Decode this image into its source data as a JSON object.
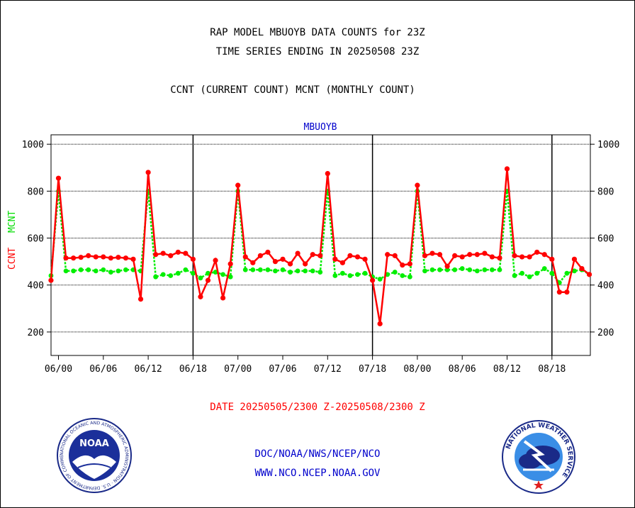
{
  "header": {
    "title_line1": "RAP MODEL MBUOYB DATA COUNTS for 23Z",
    "title_line2": "TIME SERIES ENDING IN 20250508 23Z",
    "subtitle": "CCNT (CURRENT COUNT) MCNT (MONTHLY COUNT)"
  },
  "footer": {
    "date_range": "DATE 20250505/2300 Z-20250508/2300 Z",
    "link1": "DOC/NOAA/NWS/NCEP/NCO",
    "link2": "WWW.NCO.NCEP.NOAA.GOV"
  },
  "logos": {
    "noaa": "NOAA",
    "noaa_ring": "NATIONAL OCEANIC AND ATMOSPHERIC ADMINISTRATION · U.S. DEPARTMENT OF COMMERCE ·",
    "nws_ring": "NATIONAL WEATHER SERVICE"
  },
  "colors": {
    "ccnt": "#ff0000",
    "mcnt": "#00ee00",
    "title_blue": "#0000cc"
  },
  "chart_data": {
    "type": "line",
    "title": "MBUOYB",
    "ylabel_parts": [
      "CCNT",
      "MCNT"
    ],
    "ylim": [
      100,
      1040
    ],
    "yticks": [
      200,
      400,
      600,
      800,
      1000
    ],
    "xlim": [
      -1,
      59
    ],
    "xticks": [
      {
        "x": 0,
        "label": "06/00"
      },
      {
        "x": 6,
        "label": "06/06"
      },
      {
        "x": 12,
        "label": "06/12"
      },
      {
        "x": 18,
        "label": "06/18"
      },
      {
        "x": 24,
        "label": "07/00"
      },
      {
        "x": 30,
        "label": "07/06"
      },
      {
        "x": 36,
        "label": "07/12"
      },
      {
        "x": 42,
        "label": "07/18"
      },
      {
        "x": 48,
        "label": "08/00"
      },
      {
        "x": 54,
        "label": "08/06"
      },
      {
        "x": 60,
        "label": "08/12"
      },
      {
        "x": 66,
        "label": "08/18"
      }
    ],
    "day_separators": [
      18,
      42,
      66
    ],
    "grid": true,
    "series": [
      {
        "name": "CCNT",
        "values": [
          420,
          855,
          515,
          515,
          518,
          525,
          520,
          520,
          515,
          518,
          515,
          510,
          340,
          880,
          530,
          535,
          525,
          540,
          535,
          510,
          350,
          420,
          505,
          345,
          490,
          825,
          520,
          495,
          525,
          540,
          500,
          510,
          490,
          535,
          490,
          530,
          525,
          875,
          510,
          495,
          525,
          520,
          510,
          420,
          235,
          530,
          525,
          485,
          490,
          825,
          525,
          535,
          530,
          480,
          525,
          520,
          530,
          530,
          535,
          520,
          515,
          895,
          525,
          520,
          520,
          540,
          530,
          510,
          370,
          370,
          510,
          470,
          445
        ]
      },
      {
        "name": "MCNT",
        "values": [
          440,
          800,
          460,
          460,
          465,
          465,
          460,
          465,
          455,
          460,
          465,
          465,
          460,
          800,
          435,
          445,
          440,
          450,
          465,
          450,
          430,
          450,
          455,
          445,
          435,
          800,
          465,
          465,
          465,
          465,
          460,
          465,
          455,
          460,
          460,
          460,
          455,
          800,
          440,
          450,
          440,
          445,
          450,
          435,
          425,
          445,
          455,
          440,
          435,
          800,
          460,
          465,
          465,
          465,
          465,
          470,
          465,
          460,
          465,
          465,
          465,
          800,
          440,
          450,
          435,
          450,
          470,
          450,
          410,
          450,
          460,
          465,
          445
        ]
      }
    ]
  }
}
